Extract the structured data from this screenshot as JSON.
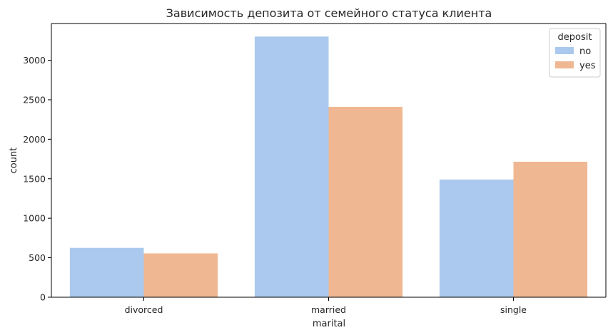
{
  "chart_data": {
    "type": "bar",
    "title": "Зависимость депозита от семейного статуса клиента",
    "xlabel": "marital",
    "ylabel": "count",
    "categories": [
      "divorced",
      "married",
      "single"
    ],
    "series": [
      {
        "name": "no",
        "values": [
          625,
          3300,
          1490
        ],
        "color": "#abc9ee"
      },
      {
        "name": "yes",
        "values": [
          555,
          2410,
          1715
        ],
        "color": "#f0b892"
      }
    ],
    "ylim": [
      0,
      3465
    ],
    "yticks": [
      0,
      500,
      1000,
      1500,
      2000,
      2500,
      3000
    ],
    "grid": false,
    "legend": {
      "title": "deposit",
      "position": "top-right"
    }
  }
}
